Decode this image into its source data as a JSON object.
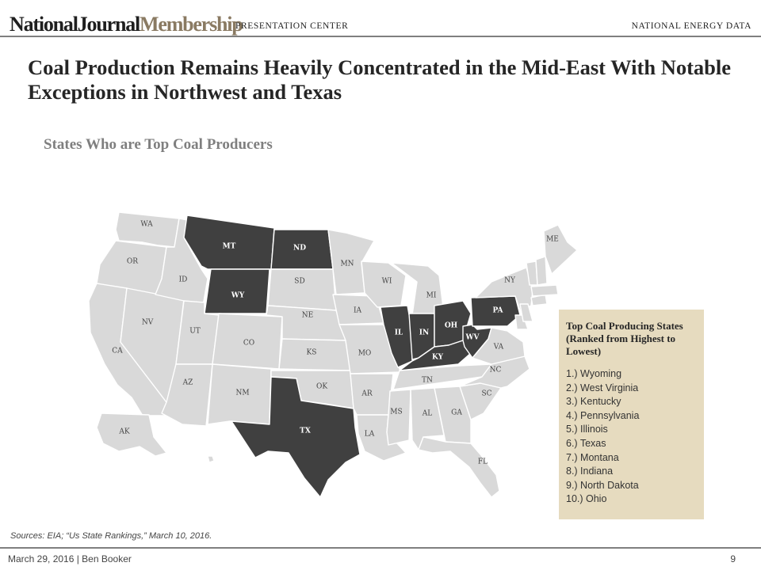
{
  "header": {
    "logo_national": "NationalJournal",
    "logo_membership": "Membership",
    "section": "PRESENTATION CENTER",
    "right_label": "NATIONAL ENERGY DATA"
  },
  "title": "Coal Production Remains Heavily Concentrated in the Mid-East With Notable Exceptions in Northwest and Texas",
  "map_heading": "States Who are Top Coal Producers",
  "colors": {
    "highlight": "#404040",
    "other": "#d9d9d9",
    "panel": "#e6dbbf"
  },
  "highlighted_states": [
    "MT",
    "ND",
    "WY",
    "TX",
    "IL",
    "IN",
    "OH",
    "KY",
    "WV",
    "PA"
  ],
  "states": [
    {
      "id": "WA",
      "label": "WA"
    },
    {
      "id": "OR",
      "label": "OR"
    },
    {
      "id": "CA",
      "label": "CA"
    },
    {
      "id": "ID",
      "label": "ID"
    },
    {
      "id": "NV",
      "label": "NV"
    },
    {
      "id": "MT",
      "label": "MT"
    },
    {
      "id": "WY",
      "label": "WY"
    },
    {
      "id": "UT",
      "label": "UT"
    },
    {
      "id": "AZ",
      "label": "AZ"
    },
    {
      "id": "CO",
      "label": "CO"
    },
    {
      "id": "NM",
      "label": "NM"
    },
    {
      "id": "ND",
      "label": "ND"
    },
    {
      "id": "SD",
      "label": "SD"
    },
    {
      "id": "NE",
      "label": "NE"
    },
    {
      "id": "KS",
      "label": "KS"
    },
    {
      "id": "OK",
      "label": "OK"
    },
    {
      "id": "TX",
      "label": "TX"
    },
    {
      "id": "MN",
      "label": "MN"
    },
    {
      "id": "IA",
      "label": "IA"
    },
    {
      "id": "MO",
      "label": "MO"
    },
    {
      "id": "AR",
      "label": "AR"
    },
    {
      "id": "LA",
      "label": "LA"
    },
    {
      "id": "WI",
      "label": "WI"
    },
    {
      "id": "IL",
      "label": "IL"
    },
    {
      "id": "MI",
      "label": "MI"
    },
    {
      "id": "IN",
      "label": "IN"
    },
    {
      "id": "OH",
      "label": "OH"
    },
    {
      "id": "KY",
      "label": "KY"
    },
    {
      "id": "TN",
      "label": "TN"
    },
    {
      "id": "MS",
      "label": "MS"
    },
    {
      "id": "AL",
      "label": "AL"
    },
    {
      "id": "GA",
      "label": "GA"
    },
    {
      "id": "FL",
      "label": "FL"
    },
    {
      "id": "SC",
      "label": "SC"
    },
    {
      "id": "NC",
      "label": "NC"
    },
    {
      "id": "VA",
      "label": "VA"
    },
    {
      "id": "WV",
      "label": "WV"
    },
    {
      "id": "PA",
      "label": "PA"
    },
    {
      "id": "NY",
      "label": "NY"
    },
    {
      "id": "ME",
      "label": "ME"
    },
    {
      "id": "AK",
      "label": "AK"
    }
  ],
  "ranking": {
    "title": "Top Coal Producing States (Ranked from Highest to Lowest)",
    "items": [
      "1.) Wyoming",
      "2.) West Virginia",
      "3.) Kentucky",
      "4.) Pennsylvania",
      "5.) Illinois",
      "6.) Texas",
      "7.) Montana",
      "8.) Indiana",
      "9.) North Dakota",
      "10.) Ohio"
    ]
  },
  "sources": "Sources: EIA; “Us State Rankings,” March 10, 2016.",
  "footer": {
    "text": "March 29, 2016  |  Ben Booker",
    "page": "9"
  }
}
